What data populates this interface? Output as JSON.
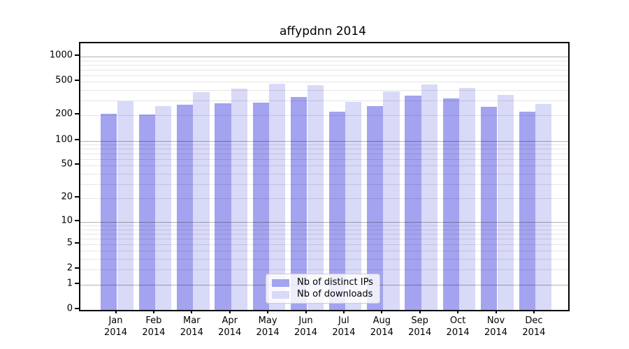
{
  "title": "affypdnn 2014",
  "chart_data": {
    "type": "bar",
    "categories": [
      "Jan",
      "Feb",
      "Mar",
      "Apr",
      "May",
      "Jun",
      "Jul",
      "Aug",
      "Sep",
      "Oct",
      "Nov",
      "Dec"
    ],
    "category_year": "2014",
    "series": [
      {
        "name": "Nb of distinct IPs",
        "color": "#a3a3ef",
        "values": [
          211,
          207,
          270,
          280,
          286,
          331,
          223,
          260,
          346,
          317,
          252,
          222
        ]
      },
      {
        "name": "Nb of downloads",
        "color": "#d9d9f8",
        "values": [
          296,
          260,
          376,
          416,
          473,
          458,
          288,
          385,
          467,
          424,
          350,
          272
        ]
      }
    ],
    "title": "affypdnn 2014",
    "xlabel": "",
    "ylabel": "",
    "yscale": "log10(1+x)",
    "yticks": [
      0,
      1,
      2,
      5,
      10,
      20,
      50,
      100,
      200,
      500,
      1000
    ],
    "ylim": [
      0,
      1435
    ],
    "grid": "horizontal major+minor, drawn over bars",
    "legend_position": "lower center inside plot"
  },
  "legend": {
    "items": [
      {
        "label": "Nb of distinct IPs"
      },
      {
        "label": "Nb of downloads"
      }
    ]
  }
}
